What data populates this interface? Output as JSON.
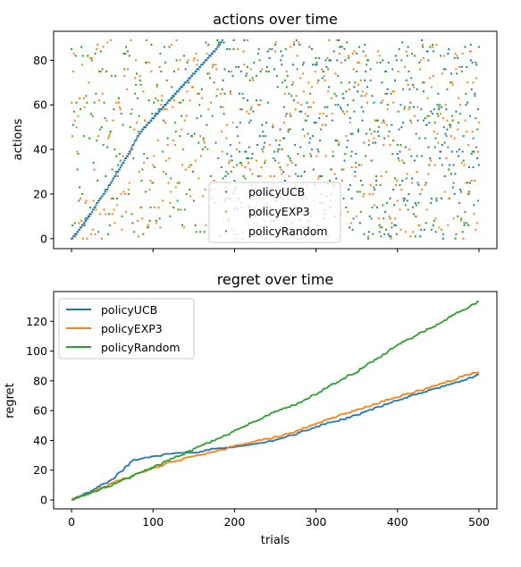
{
  "colors": {
    "policyUCB": "#1f77b4",
    "policyEXP3": "#ff7f0e",
    "policyRandom": "#2ca02c"
  },
  "chart_data": [
    {
      "type": "scatter",
      "title": "actions over time",
      "xlabel": "",
      "ylabel": "actions",
      "xlim": [
        -22,
        522
      ],
      "ylim": [
        -4.5,
        93
      ],
      "xticks": [
        0,
        100,
        200,
        300,
        400,
        500
      ],
      "yticks": [
        0,
        20,
        40,
        60,
        80
      ],
      "xtick_labels_shown": false,
      "legend": "lower-center",
      "series": [
        {
          "name": "policyUCB",
          "marker": "point",
          "x_range": [
            0,
            500
          ],
          "y_range": [
            0,
            89
          ],
          "pattern": "actions increase almost linearly from 0 to 89 over trials 0-185, then scattered uniformly 0-89",
          "x": [
            0,
            10,
            20,
            30,
            40,
            50,
            60,
            70,
            80,
            90,
            100,
            110,
            120,
            130,
            140,
            150,
            160,
            170,
            180,
            185
          ],
          "y": [
            0,
            4,
            9,
            15,
            20,
            26,
            32,
            38,
            45,
            50,
            54,
            58,
            62,
            66,
            70,
            74,
            78,
            82,
            86,
            89
          ]
        },
        {
          "name": "policyEXP3",
          "marker": "point",
          "x_range": [
            0,
            500
          ],
          "y_range": [
            0,
            89
          ],
          "pattern": "actions scattered uniformly 0-89 across all trials"
        },
        {
          "name": "policyRandom",
          "marker": "point",
          "x_range": [
            0,
            500
          ],
          "y_range": [
            0,
            89
          ],
          "pattern": "actions scattered uniformly 0-89 across all trials"
        }
      ]
    },
    {
      "type": "line",
      "title": "regret over time",
      "xlabel": "trials",
      "ylabel": "regret",
      "xlim": [
        -22,
        522
      ],
      "ylim": [
        -6,
        140
      ],
      "xticks": [
        0,
        100,
        200,
        300,
        400,
        500
      ],
      "yticks": [
        0,
        20,
        40,
        60,
        80,
        100,
        120
      ],
      "legend": "top-left",
      "x": [
        0,
        25,
        50,
        75,
        100,
        125,
        150,
        175,
        200,
        225,
        250,
        275,
        300,
        325,
        350,
        375,
        400,
        425,
        450,
        475,
        500
      ],
      "series": [
        {
          "name": "policyUCB",
          "values": [
            0,
            6,
            14,
            26,
            29,
            31,
            31,
            34,
            35,
            37,
            40,
            44,
            49,
            53,
            57,
            62,
            67,
            71,
            75,
            79,
            84
          ]
        },
        {
          "name": "policyEXP3",
          "values": [
            0,
            5,
            11,
            16,
            21,
            26,
            29,
            32,
            36,
            39,
            42,
            46,
            51,
            56,
            60,
            65,
            69,
            73,
            77,
            82,
            86
          ]
        },
        {
          "name": "policyRandom",
          "values": [
            0,
            5,
            10,
            16,
            22,
            28,
            34,
            40,
            46,
            53,
            59,
            64,
            71,
            79,
            86,
            95,
            104,
            111,
            118,
            126,
            133
          ]
        }
      ]
    }
  ]
}
